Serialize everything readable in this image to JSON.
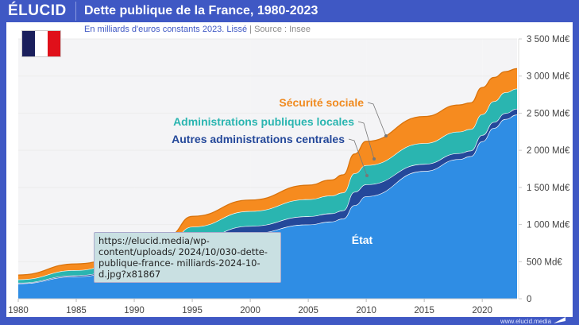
{
  "header": {
    "logo": "ÉLUCID",
    "title": "Dette publique de la France, 1980-2023",
    "subtitle": "En milliards d'euros constants 2023. Lissé",
    "source": "Source : Insee",
    "watermark": "www.elucid.media"
  },
  "flag": {
    "colors": [
      "#1a1f5c",
      "#ffffff",
      "#e0101a"
    ]
  },
  "tooltip": {
    "text": "https://elucid.media/wp-content/uploads/ 2024/10/030-dette-publique-france- milliards-2024-10-d.jpg?x81867"
  },
  "chart_data": {
    "type": "area",
    "stacked": true,
    "title": "Dette publique de la France, 1980-2023",
    "subtitle": "En milliards d'euros constants 2023. Lissé | Source : Insee",
    "xlabel": "",
    "ylabel": "",
    "xlim": [
      1980,
      2023
    ],
    "ylim": [
      0,
      3500
    ],
    "x_ticks": [
      1980,
      1985,
      1990,
      1995,
      2000,
      2005,
      2010,
      2015,
      2020
    ],
    "y_ticks": [
      {
        "value": 0,
        "label": "0"
      },
      {
        "value": 500,
        "label": "500 Md€"
      },
      {
        "value": 1000,
        "label": "1 000 Md€"
      },
      {
        "value": 1500,
        "label": "1 500 Md€"
      },
      {
        "value": 2000,
        "label": "2 000 Md€"
      },
      {
        "value": 2500,
        "label": "2 500 Md€"
      },
      {
        "value": 3000,
        "label": "3 000 Md€"
      },
      {
        "value": 3500,
        "label": "3 500 Md€"
      }
    ],
    "grid": true,
    "legend": "inline-annotations",
    "x": [
      1980,
      1985,
      1990,
      1993,
      1995,
      2000,
      2005,
      2007,
      2008,
      2009,
      2010,
      2015,
      2018,
      2019,
      2020,
      2021,
      2022,
      2023
    ],
    "series": [
      {
        "name": "État",
        "color": "#2f8de4",
        "values": [
          205,
          300,
          420,
          560,
          720,
          880,
          1000,
          1040,
          1080,
          1260,
          1380,
          1720,
          1880,
          1920,
          2120,
          2300,
          2420,
          2480
        ]
      },
      {
        "name": "Autres administrations centrales",
        "color": "#24489a",
        "values": [
          10,
          15,
          25,
          45,
          70,
          100,
          110,
          110,
          110,
          180,
          160,
          95,
          80,
          75,
          85,
          80,
          80,
          80
        ]
      },
      {
        "name": "Administrations publiques locales",
        "color": "#2ab5b0",
        "values": [
          45,
          70,
          120,
          160,
          180,
          200,
          230,
          240,
          240,
          250,
          260,
          280,
          290,
          290,
          280,
          280,
          280,
          270
        ]
      },
      {
        "name": "Sécurité sociale",
        "color": "#f68b1f",
        "values": [
          60,
          85,
          55,
          90,
          140,
          150,
          190,
          210,
          240,
          260,
          320,
          360,
          360,
          355,
          360,
          320,
          280,
          270
        ]
      }
    ],
    "annotations": [
      {
        "label": "Sécurité sociale",
        "color": "#f08a1f"
      },
      {
        "label": "Administrations publiques locales",
        "color": "#2ab5b0"
      },
      {
        "label": "Autres administrations centrales",
        "color": "#24489a"
      },
      {
        "label": "État",
        "color": "#ffffff"
      }
    ]
  }
}
